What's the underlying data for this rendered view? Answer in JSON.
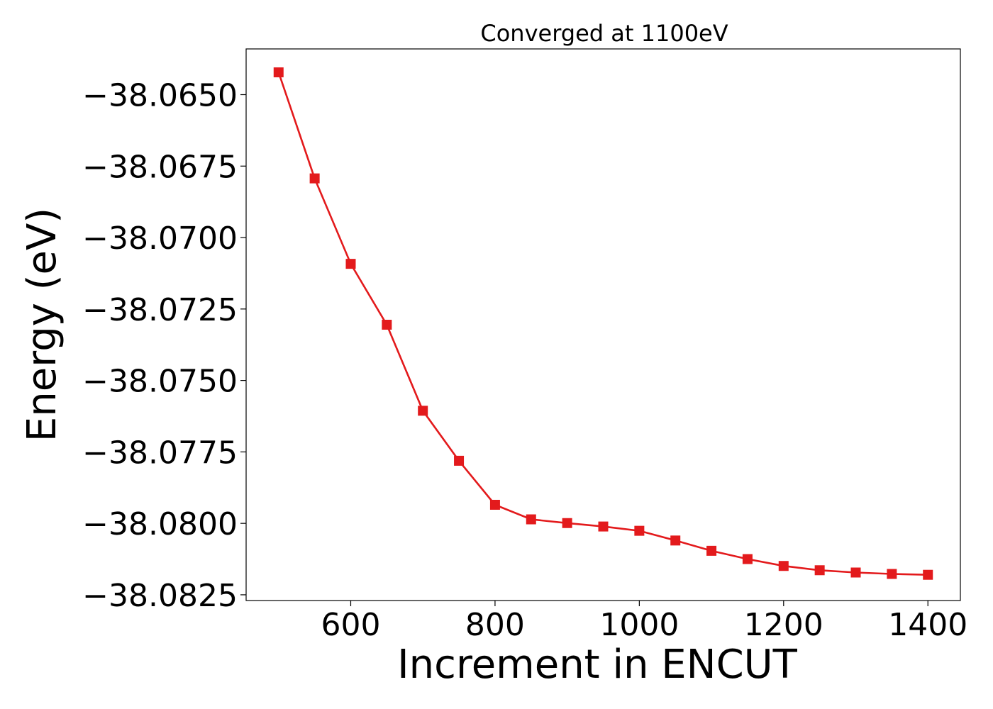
{
  "chart_data": {
    "type": "line",
    "title": "Converged at 1100eV",
    "xlabel": "Increment in ENCUT",
    "ylabel": "Energy (eV)",
    "xlim": [
      455,
      1445
    ],
    "ylim": [
      -38.0827,
      -38.0634
    ],
    "xticks": [
      600,
      800,
      1000,
      1200,
      1400
    ],
    "xtick_labels": [
      "600",
      "800",
      "1000",
      "1200",
      "1400"
    ],
    "yticks": [
      -38.065,
      -38.0675,
      -38.07,
      -38.0725,
      -38.075,
      -38.0775,
      -38.08,
      -38.0825
    ],
    "ytick_labels": [
      "−38.0650",
      "−38.0675",
      "−38.0700",
      "−38.0725",
      "−38.0750",
      "−38.0775",
      "−38.0800",
      "−38.0825"
    ],
    "grid": false,
    "legend": "none",
    "series": [
      {
        "color": "#e31a1c",
        "marker": "square",
        "x": [
          500,
          550,
          600,
          650,
          700,
          750,
          800,
          850,
          900,
          950,
          1000,
          1050,
          1100,
          1150,
          1200,
          1250,
          1300,
          1350,
          1400
        ],
        "y": [
          -38.06422,
          -38.06793,
          -38.07092,
          -38.07305,
          -38.07606,
          -38.07781,
          -38.07935,
          -38.07986,
          -38.07999,
          -38.08011,
          -38.08026,
          -38.0806,
          -38.08096,
          -38.08125,
          -38.08149,
          -38.08164,
          -38.08172,
          -38.08177,
          -38.0818
        ]
      }
    ]
  }
}
